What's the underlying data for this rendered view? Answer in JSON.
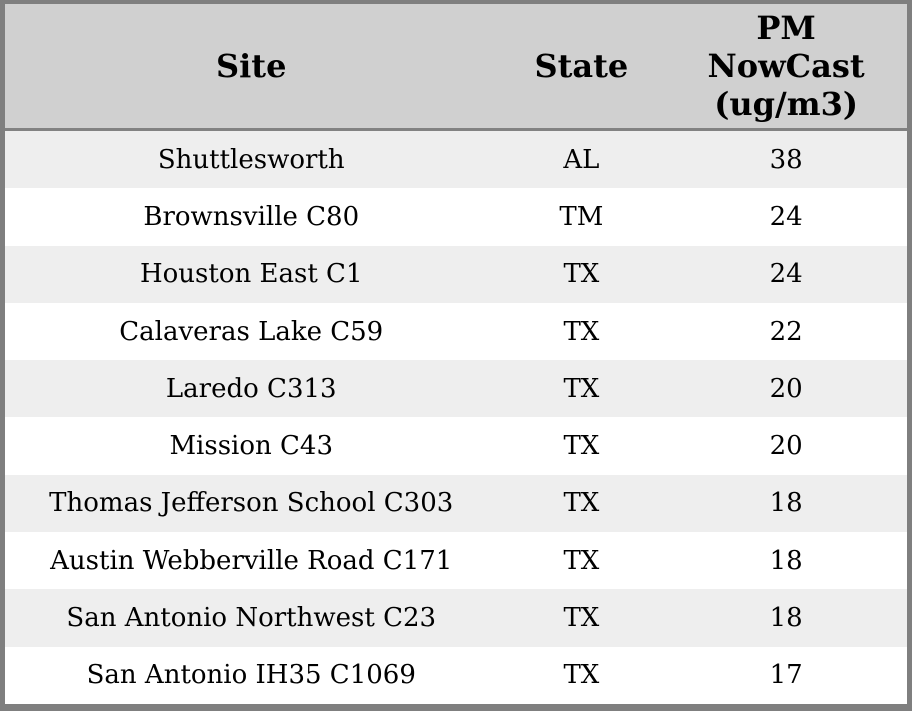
{
  "colors": {
    "header_background": "#d0d0d0",
    "row_stripe": "#eeeeee",
    "row_background": "#ffffff",
    "border": "#7f7f7f",
    "text": "#000000"
  },
  "chart_data": {
    "type": "table",
    "title": "",
    "columns": [
      {
        "key": "site",
        "label": "Site"
      },
      {
        "key": "state",
        "label": "State"
      },
      {
        "key": "pm",
        "label": "PM NowCast (ug/m3)"
      }
    ],
    "rows": [
      {
        "site": "Shuttlesworth",
        "state": "AL",
        "pm": 38
      },
      {
        "site": "Brownsville C80",
        "state": "TM",
        "pm": 24
      },
      {
        "site": "Houston East C1",
        "state": "TX",
        "pm": 24
      },
      {
        "site": "Calaveras Lake C59",
        "state": "TX",
        "pm": 22
      },
      {
        "site": "Laredo C313",
        "state": "TX",
        "pm": 20
      },
      {
        "site": "Mission C43",
        "state": "TX",
        "pm": 20
      },
      {
        "site": "Thomas Jefferson School C303",
        "state": "TX",
        "pm": 18
      },
      {
        "site": "Austin Webberville Road C171",
        "state": "TX",
        "pm": 18
      },
      {
        "site": "San Antonio Northwest C23",
        "state": "TX",
        "pm": 18
      },
      {
        "site": "San Antonio IH35 C1069",
        "state": "TX",
        "pm": 17
      }
    ]
  }
}
